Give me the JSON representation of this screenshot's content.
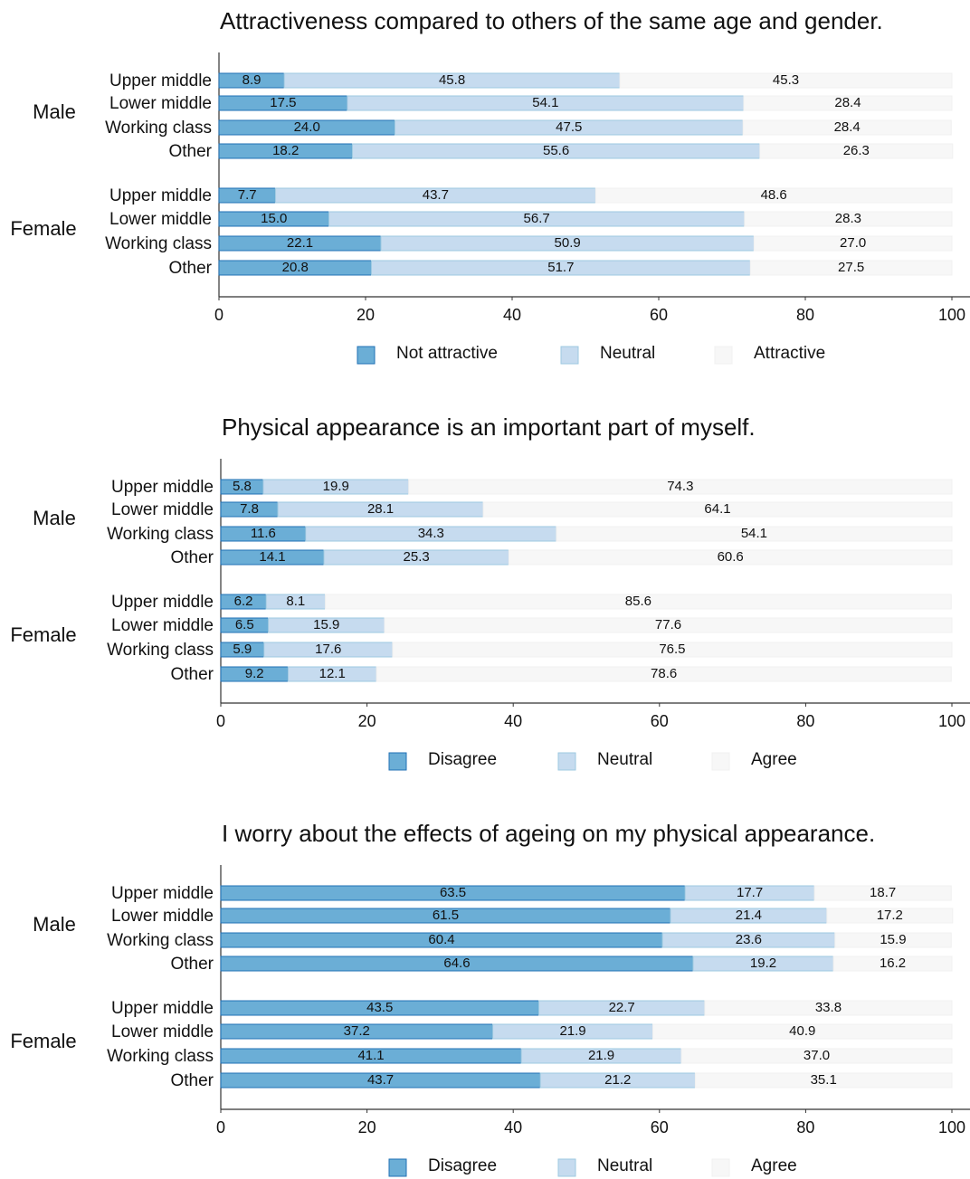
{
  "chart_data": [
    {
      "type": "stacked_barh",
      "title": "Attractiveness compared to others of the same age and gender.",
      "groups": [
        "Male",
        "Female"
      ],
      "categories": [
        "Upper middle",
        "Lower middle",
        "Working class",
        "Other",
        "Upper middle",
        "Lower middle",
        "Working class",
        "Other"
      ],
      "series": [
        {
          "name": "Not attractive",
          "color": "#6baed6",
          "values": [
            8.9,
            17.5,
            24.0,
            18.2,
            7.7,
            15.0,
            22.1,
            20.8
          ],
          "value_labels": [
            "8.9",
            "17.5",
            "24.0",
            "18.2",
            "7.7",
            "15.0",
            "22.1",
            "20.8"
          ]
        },
        {
          "name": "Neutral",
          "color": "#c6dbef",
          "values": [
            45.8,
            54.1,
            47.5,
            55.6,
            43.7,
            56.7,
            50.9,
            51.7
          ],
          "value_labels": [
            "45.8",
            "54.1",
            "47.5",
            "55.6",
            "43.7",
            "56.7",
            "50.9",
            "51.7"
          ]
        },
        {
          "name": "Attractive",
          "color": "#f7f7f7",
          "values": [
            45.3,
            28.4,
            28.4,
            26.3,
            48.6,
            28.3,
            27.0,
            27.5
          ],
          "value_labels": [
            "45.3",
            "28.4",
            "28.4",
            "26.3",
            "48.6",
            "28.3",
            "27.0",
            "27.5"
          ]
        }
      ],
      "xlim": [
        0,
        100
      ],
      "xticks": [
        0,
        20,
        40,
        60,
        80,
        100
      ]
    },
    {
      "type": "stacked_barh",
      "title": "Physical appearance is an important part of myself.",
      "groups": [
        "Male",
        "Female"
      ],
      "categories": [
        "Upper middle",
        "Lower middle",
        "Working class",
        "Other",
        "Upper middle",
        "Lower middle",
        "Working class",
        "Other"
      ],
      "series": [
        {
          "name": "Disagree",
          "color": "#6baed6",
          "values": [
            5.8,
            7.8,
            11.6,
            14.1,
            6.2,
            6.5,
            5.9,
            9.2
          ],
          "value_labels": [
            "5.8",
            "7.8",
            "11.6",
            "14.1",
            "6.2",
            "6.5",
            "5.9",
            "9.2"
          ]
        },
        {
          "name": "Neutral",
          "color": "#c6dbef",
          "values": [
            19.9,
            28.1,
            34.3,
            25.3,
            8.1,
            15.9,
            17.6,
            12.1
          ],
          "value_labels": [
            "19.9",
            "28.1",
            "34.3",
            "25.3",
            "8.1",
            "15.9",
            "17.6",
            "12.1"
          ]
        },
        {
          "name": "Agree",
          "color": "#f7f7f7",
          "values": [
            74.3,
            64.1,
            54.1,
            60.6,
            85.6,
            77.6,
            76.5,
            78.6
          ],
          "value_labels": [
            "74.3",
            "64.1",
            "54.1",
            "60.6",
            "85.6",
            "77.6",
            "76.5",
            "78.6"
          ]
        }
      ],
      "xlim": [
        0,
        100
      ],
      "xticks": [
        0,
        20,
        40,
        60,
        80,
        100
      ]
    },
    {
      "type": "stacked_barh",
      "title": "I worry about the effects of ageing on my physical appearance.",
      "groups": [
        "Male",
        "Female"
      ],
      "categories": [
        "Upper middle",
        "Lower middle",
        "Working class",
        "Other",
        "Upper middle",
        "Lower middle",
        "Working class",
        "Other"
      ],
      "series": [
        {
          "name": "Disagree",
          "color": "#6baed6",
          "values": [
            63.5,
            61.5,
            60.4,
            64.6,
            43.5,
            37.2,
            41.1,
            43.7
          ],
          "value_labels": [
            "63.5",
            "61.5",
            "60.4",
            "64.6",
            "43.5",
            "37.2",
            "41.1",
            "43.7"
          ]
        },
        {
          "name": "Neutral",
          "color": "#c6dbef",
          "values": [
            17.7,
            21.4,
            23.6,
            19.2,
            22.7,
            21.9,
            21.9,
            21.2
          ],
          "value_labels": [
            "17.7",
            "21.4",
            "23.6",
            "19.2",
            "22.7",
            "21.9",
            "21.9",
            "21.2"
          ]
        },
        {
          "name": "Agree",
          "color": "#f7f7f7",
          "values": [
            18.7,
            17.2,
            15.9,
            16.2,
            33.8,
            40.9,
            37.0,
            35.1
          ],
          "value_labels": [
            "18.7",
            "17.2",
            "15.9",
            "16.2",
            "33.8",
            "40.9",
            "37.0",
            "35.1"
          ]
        }
      ],
      "xlim": [
        0,
        100
      ],
      "xticks": [
        0,
        20,
        40,
        60,
        80,
        100
      ]
    }
  ]
}
